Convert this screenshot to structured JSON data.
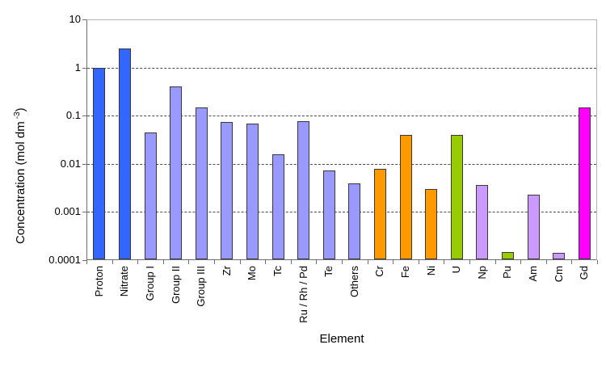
{
  "chart_data": {
    "type": "bar",
    "title": "",
    "xlabel": "Element",
    "ylabel": "Concentration (mol dm -3)",
    "ylabel_parts": {
      "main": "Concentration (mol dm",
      "sup": "-3",
      "end": ")"
    },
    "yscale": "log",
    "ylim": [
      0.0001,
      10
    ],
    "ytick_labels": [
      "10",
      "1",
      "0.1",
      "0.01",
      "0.001",
      "0.0001"
    ],
    "ytick_values": [
      10,
      1,
      0.1,
      0.01,
      0.001,
      0.0001
    ],
    "gridline_values": [
      1,
      0.1,
      0.01,
      0.001
    ],
    "grid": "horizontal-dashed",
    "legend_position": "none",
    "categories": [
      "Proton",
      "Nitrate",
      "Group I",
      "Group II",
      "Group III",
      "Zr",
      "Mo",
      "Tc",
      "Ru / Rh / Pd",
      "Te",
      "Others",
      "Cr",
      "Fe",
      "Ni",
      "U",
      "Np",
      "Pu",
      "Am",
      "Cm",
      "Gd"
    ],
    "values": [
      1.0,
      2.5,
      0.045,
      0.4,
      0.15,
      0.075,
      0.068,
      0.016,
      0.078,
      0.0072,
      0.004,
      0.008,
      0.04,
      0.003,
      0.04,
      0.0036,
      0.00015,
      0.0023,
      0.00014,
      0.15
    ],
    "bar_colors": [
      "#3366FF",
      "#3366FF",
      "#9999FF",
      "#9999FF",
      "#9999FF",
      "#9999FF",
      "#9999FF",
      "#9999FF",
      "#9999FF",
      "#9999FF",
      "#9999FF",
      "#FF9900",
      "#FF9900",
      "#FF9900",
      "#99CC00",
      "#CC99FF",
      "#99CC00",
      "#CC99FF",
      "#CC99FF",
      "#FF00FF"
    ]
  },
  "colors": {
    "bar_outline": "#383838",
    "axis_line": "#6e6e6e",
    "plot_border": "#b4b4b4",
    "gridline": "#4a4a4a",
    "background": "#ffffff",
    "text": "#000000"
  }
}
